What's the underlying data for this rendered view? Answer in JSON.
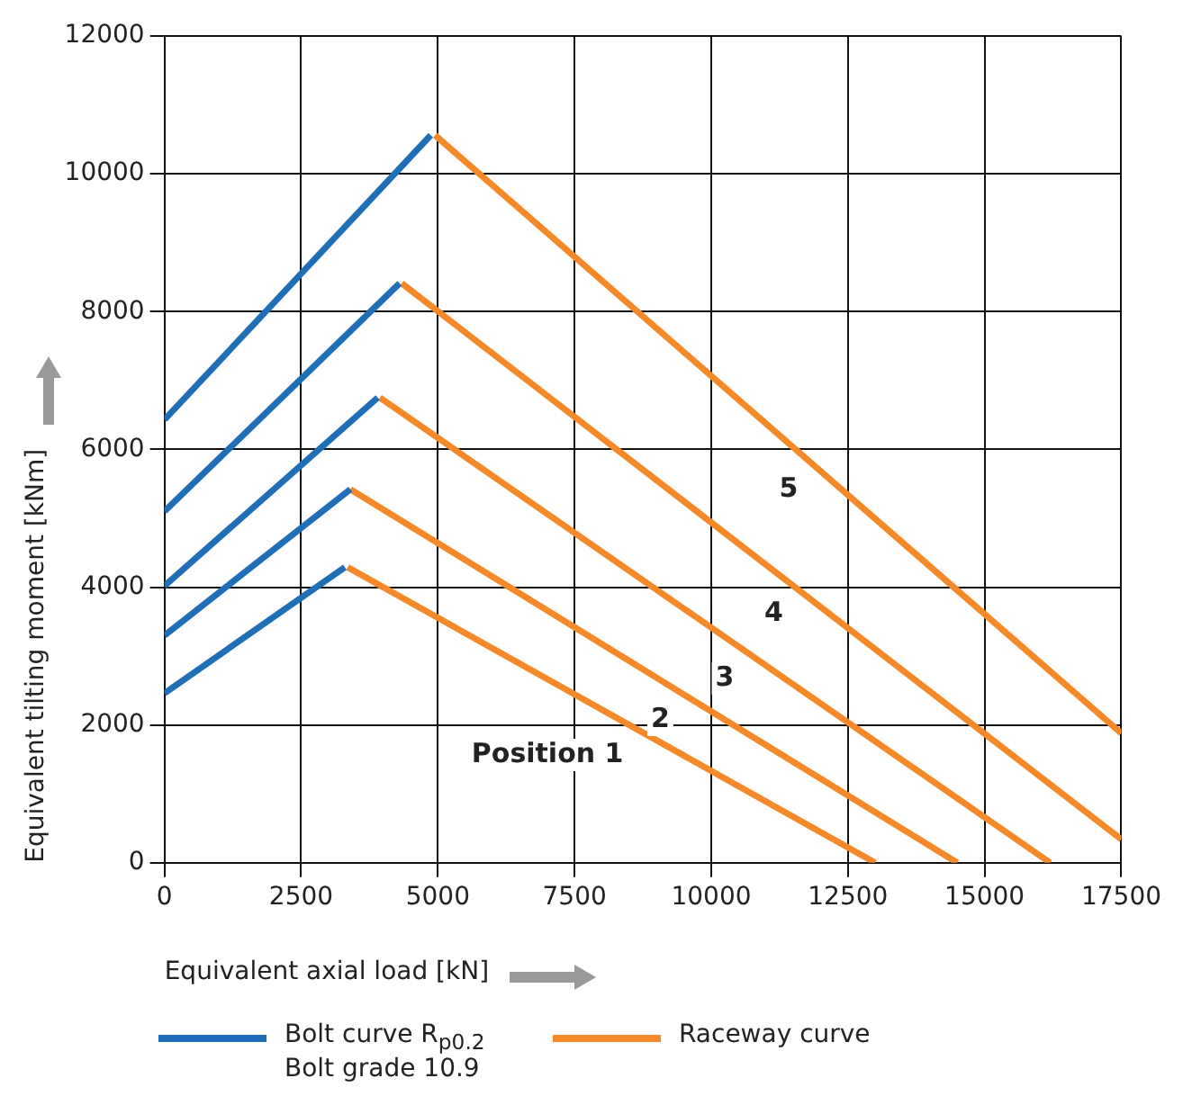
{
  "chart_data": {
    "type": "line",
    "xlabel": "Equivalent axial load [kN]",
    "ylabel": "Equivalent tilting moment [kNm]",
    "xlim": [
      0,
      17500
    ],
    "xticks": [
      0,
      2500,
      5000,
      7500,
      10000,
      12500,
      15000,
      17500
    ],
    "ylim": [
      0,
      12000
    ],
    "yticks": [
      0,
      2000,
      4000,
      6000,
      8000,
      10000,
      12000
    ],
    "grid": true,
    "legend": "bottom",
    "marker": "none",
    "line_style": "solid",
    "series": [
      {
        "name": "Bolt curve R$_{p0.2}$ Bolt grade 10.9",
        "color": "#1f6fb8",
        "x": [
          0,
          3300
        ],
        "values": [
          2460,
          4290
        ]
      },
      {
        "name": "Raceway curve",
        "color": "#f5892a",
        "x": [
          3350,
          13000
        ],
        "values": [
          4290,
          0
        ]
      },
      {
        "color": "#1f6fb8",
        "x": [
          0,
          3400
        ],
        "values": [
          3300,
          5420
        ]
      },
      {
        "color": "#f5892a",
        "x": [
          3400,
          14500
        ],
        "values": [
          5420,
          0
        ]
      },
      {
        "color": "#1f6fb8",
        "x": [
          0,
          3900
        ],
        "values": [
          4020,
          6750
        ]
      },
      {
        "color": "#f5892a",
        "x": [
          3940,
          16200
        ],
        "values": [
          6750,
          0
        ]
      },
      {
        "color": "#1f6fb8",
        "x": [
          0,
          4300
        ],
        "values": [
          5100,
          8410
        ]
      },
      {
        "color": "#f5892a",
        "x": [
          4340,
          17500
        ],
        "values": [
          8410,
          340
        ]
      },
      {
        "color": "#1f6fb8",
        "x": [
          0,
          4870
        ],
        "values": [
          6430,
          10560
        ]
      },
      {
        "color": "#f5892a",
        "x": [
          4950,
          17500
        ],
        "values": [
          10560,
          1880
        ]
      }
    ],
    "annotations": [
      "Position 1",
      "2",
      "3",
      "4",
      "5"
    ]
  }
}
